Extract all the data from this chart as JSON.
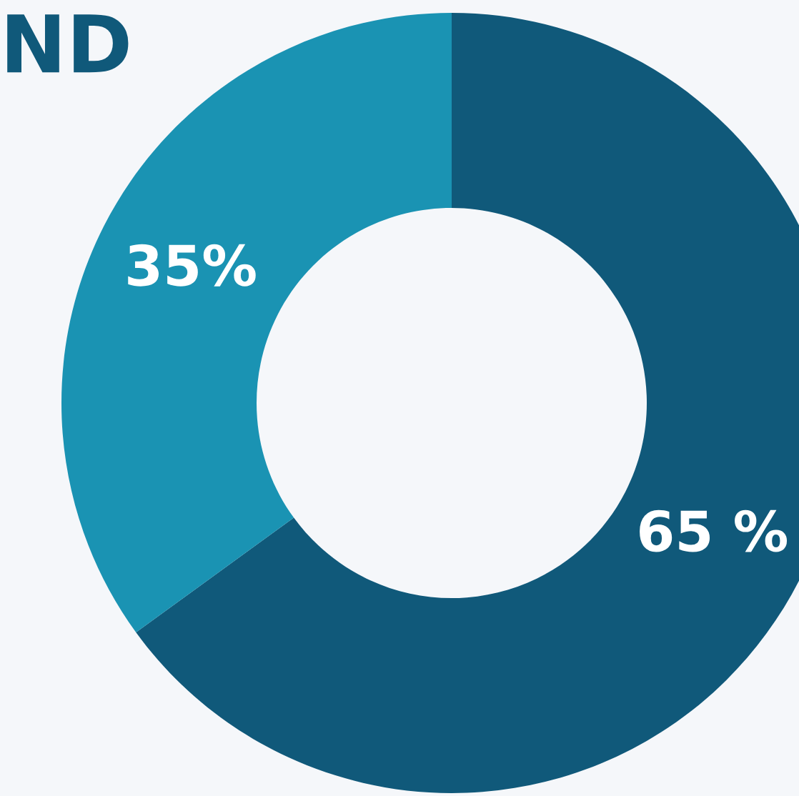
{
  "chart_data": {
    "type": "donut",
    "title": "ND",
    "categories": [
      null,
      null
    ],
    "values": [
      65,
      35
    ],
    "colors": [
      "#10597a",
      "#1a93b3"
    ],
    "value_labels": [
      "65 %",
      "35%"
    ]
  }
}
